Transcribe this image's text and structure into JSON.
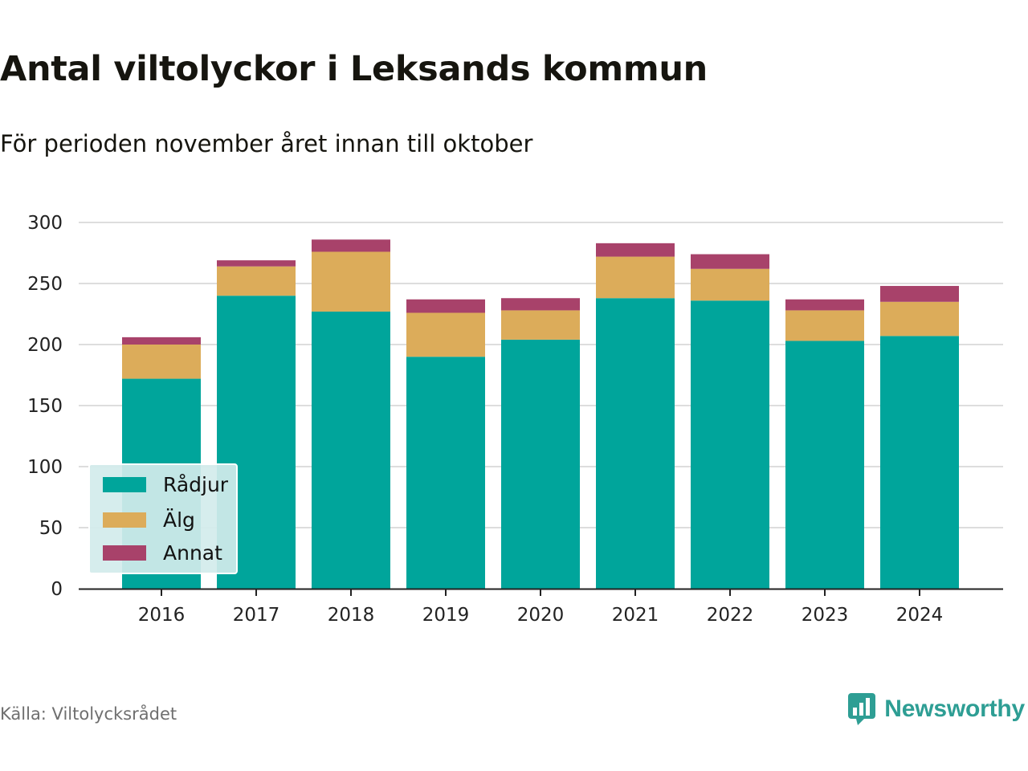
{
  "chart_data": {
    "type": "bar",
    "stacked": true,
    "title": "Antal viltolyckor i Leksands kommun",
    "subtitle": "För perioden november året innan till oktober",
    "categories": [
      "2016",
      "2017",
      "2018",
      "2019",
      "2020",
      "2021",
      "2022",
      "2023",
      "2024"
    ],
    "series": [
      {
        "name": "Rådjur",
        "color": "#00a59b",
        "values": [
          172,
          240,
          227,
          190,
          204,
          238,
          236,
          203,
          207
        ]
      },
      {
        "name": "Älg",
        "color": "#dcac5a",
        "values": [
          28,
          24,
          49,
          36,
          24,
          34,
          26,
          25,
          28
        ]
      },
      {
        "name": "Annat",
        "color": "#a8426a",
        "values": [
          6,
          5,
          10,
          11,
          10,
          11,
          12,
          9,
          13
        ]
      }
    ],
    "y_ticks": [
      "0",
      "50",
      "100",
      "150",
      "200",
      "250",
      "300"
    ],
    "ylim": [
      0,
      300
    ],
    "grid": true,
    "legend_position": "bottom-left"
  },
  "footer": {
    "source": "Källa: Viltolycksrådet",
    "brand": "Newsworthy",
    "logo_icon": "bar-chart-speech-bubble-icon"
  }
}
